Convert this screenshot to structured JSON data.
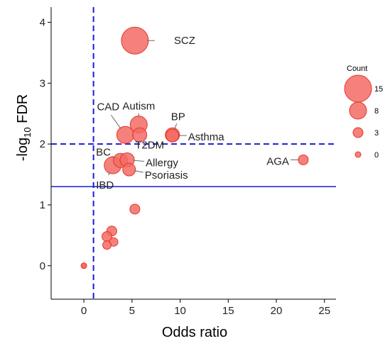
{
  "chart_data": {
    "type": "scatter",
    "xlabel": "Odds ratio",
    "ylabel": {
      "prefix": "-log",
      "sub": "10",
      "suffix": " FDR"
    },
    "xlim": [
      -3.4,
      26.2
    ],
    "ylim": [
      -0.55,
      4.25
    ],
    "xticks": [
      0,
      5,
      10,
      15,
      20,
      25
    ],
    "yticks": [
      0,
      1,
      2,
      3,
      4
    ],
    "grid": false,
    "colors": {
      "point_fill": "#f26b64",
      "point_stroke": "#e8362d",
      "ref_line": "#1a1adf",
      "label_line": "#666666"
    },
    "reference_lines": [
      {
        "orientation": "vertical",
        "value": 1,
        "style": "dashed"
      },
      {
        "orientation": "horizontal",
        "value": 2,
        "style": "dashed"
      },
      {
        "orientation": "horizontal",
        "value": 1.3,
        "style": "solid"
      }
    ],
    "points": [
      {
        "label": "SCZ",
        "x": 5.3,
        "y": 3.7,
        "count": 15
      },
      {
        "label": "Autism",
        "x": 5.7,
        "y": 2.32,
        "count": 8
      },
      {
        "label": "CAD",
        "x": 4.3,
        "y": 2.15,
        "count": 8
      },
      {
        "label": "T2DM",
        "x": 5.8,
        "y": 2.15,
        "count": 6
      },
      {
        "label": "BP",
        "x": 9.2,
        "y": 2.15,
        "count": 6
      },
      {
        "label": "Asthma",
        "x": 9.2,
        "y": 2.14,
        "count": 5
      },
      {
        "label": "AGA",
        "x": 22.8,
        "y": 1.74,
        "count": 3
      },
      {
        "label": "BC",
        "x": 3.8,
        "y": 1.73,
        "count": 6
      },
      {
        "label": "Allergy",
        "x": 4.5,
        "y": 1.74,
        "count": 6
      },
      {
        "label": "IBD",
        "x": 3.0,
        "y": 1.65,
        "count": 8
      },
      {
        "label": "Psoriasis",
        "x": 4.7,
        "y": 1.58,
        "count": 5
      },
      {
        "label": "",
        "x": 5.3,
        "y": 0.93,
        "count": 3
      },
      {
        "label": "",
        "x": 2.9,
        "y": 0.57,
        "count": 3
      },
      {
        "label": "",
        "x": 2.4,
        "y": 0.48,
        "count": 3
      },
      {
        "label": "",
        "x": 3.1,
        "y": 0.39,
        "count": 2
      },
      {
        "label": "",
        "x": 2.4,
        "y": 0.34,
        "count": 2
      },
      {
        "label": "",
        "x": 0.0,
        "y": 0.0,
        "count": 0
      }
    ],
    "legend": {
      "title": "Count",
      "placement": "right",
      "entries": [
        {
          "label": "15",
          "count": 15
        },
        {
          "label": "8",
          "count": 8
        },
        {
          "label": "3",
          "count": 3
        },
        {
          "label": "0",
          "count": 0
        }
      ]
    }
  }
}
